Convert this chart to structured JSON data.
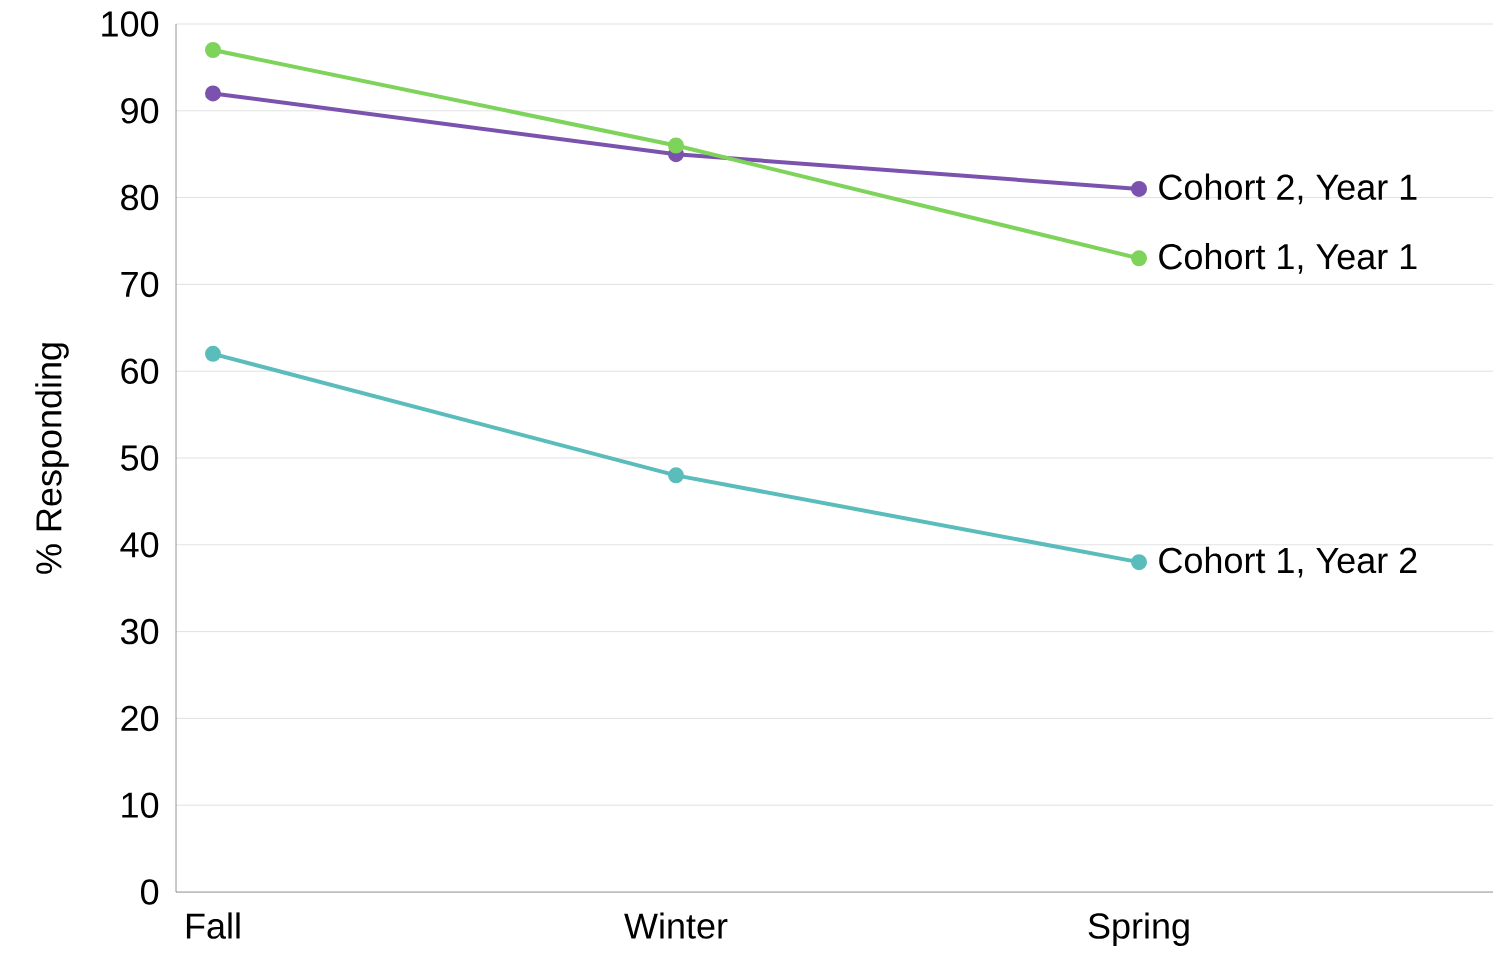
{
  "chart_data": {
    "type": "line",
    "ylabel": "% Responding",
    "categories": [
      "Fall",
      "Winter",
      "Spring"
    ],
    "series": [
      {
        "name": "Cohort 2, Year 1",
        "color": "#7b52ae",
        "values": [
          92,
          85,
          81
        ]
      },
      {
        "name": "Cohort 1, Year 1",
        "color": "#7ed35b",
        "values": [
          97,
          86,
          73
        ]
      },
      {
        "name": "Cohort 1, Year 2",
        "color": "#5bbcbc",
        "values": [
          62,
          48,
          38
        ]
      }
    ],
    "ylim": [
      0,
      100
    ],
    "yticks": [
      0,
      10,
      20,
      30,
      40,
      50,
      60,
      70,
      80,
      90,
      100
    ],
    "grid": "y",
    "marker": "circle",
    "line_style": "solid"
  }
}
